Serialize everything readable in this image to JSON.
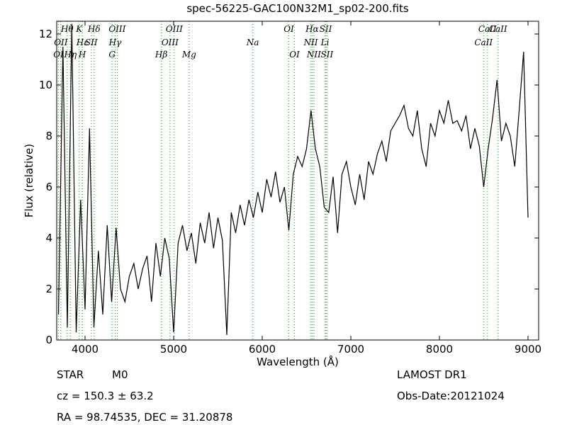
{
  "chart_data": {
    "type": "line",
    "title": "spec-56225-GAC100N32M1_sp02-200.fits",
    "x_label": "Wavelength (Å)",
    "y_label": "Flux (relative)",
    "xlim": [
      3680,
      9120
    ],
    "ylim": [
      0,
      12.5
    ],
    "xticks": [
      4000,
      5000,
      6000,
      7000,
      8000,
      9000
    ],
    "yticks": [
      0,
      2,
      4,
      6,
      8,
      10,
      12
    ],
    "series": [
      {
        "color": "#000000",
        "x": [
          3700,
          3750,
          3800,
          3850,
          3900,
          3950,
          4000,
          4050,
          4100,
          4150,
          4200,
          4250,
          4300,
          4350,
          4400,
          4450,
          4500,
          4550,
          4600,
          4650,
          4700,
          4750,
          4800,
          4850,
          4900,
          4950,
          5000,
          5050,
          5100,
          5150,
          5200,
          5250,
          5300,
          5350,
          5400,
          5450,
          5500,
          5550,
          5600,
          5650,
          5700,
          5750,
          5800,
          5850,
          5900,
          5950,
          6000,
          6050,
          6100,
          6150,
          6200,
          6250,
          6300,
          6350,
          6400,
          6450,
          6500,
          6550,
          6600,
          6650,
          6700,
          6750,
          6800,
          6850,
          6900,
          6950,
          7000,
          7050,
          7100,
          7150,
          7200,
          7250,
          7300,
          7350,
          7400,
          7450,
          7500,
          7550,
          7600,
          7650,
          7700,
          7750,
          7800,
          7850,
          7900,
          7950,
          8000,
          8050,
          8100,
          8150,
          8200,
          8250,
          8300,
          8350,
          8400,
          8450,
          8500,
          8550,
          8600,
          8650,
          8700,
          8750,
          8800,
          8850,
          8900,
          8950,
          9000
        ],
        "values": [
          1.0,
          11.5,
          0.5,
          12.4,
          0.3,
          5.5,
          1.2,
          8.3,
          0.5,
          3.5,
          1.0,
          4.5,
          1.5,
          4.4,
          2.0,
          1.5,
          2.5,
          3.0,
          2.0,
          2.8,
          3.3,
          1.5,
          3.8,
          2.5,
          4.0,
          3.2,
          0.3,
          3.8,
          4.5,
          3.5,
          4.2,
          3.0,
          4.6,
          3.8,
          5.0,
          3.6,
          4.8,
          3.9,
          0.2,
          5.0,
          4.2,
          5.3,
          4.5,
          5.5,
          4.8,
          5.8,
          5.0,
          6.3,
          5.6,
          6.6,
          5.4,
          6.0,
          4.3,
          6.5,
          7.2,
          6.8,
          7.5,
          9.0,
          7.5,
          6.8,
          5.2,
          5.0,
          6.4,
          4.2,
          6.5,
          7.0,
          6.0,
          5.3,
          6.5,
          5.5,
          7.0,
          6.5,
          7.3,
          7.8,
          7.0,
          8.2,
          8.5,
          8.8,
          9.2,
          8.3,
          8.0,
          9.0,
          7.5,
          6.8,
          8.5,
          8.0,
          9.0,
          8.5,
          9.4,
          8.5,
          8.6,
          8.2,
          8.8,
          7.5,
          8.3,
          7.6,
          6.0,
          7.5,
          8.7,
          10.2,
          7.8,
          8.5,
          8.0,
          6.8,
          9.0,
          11.3,
          4.8
        ]
      }
    ],
    "annotation_color": "#33aa33",
    "annotations": [
      {
        "label": "Hθ",
        "x": 3798
      },
      {
        "label": "OII",
        "x": 3727
      },
      {
        "label": "OI",
        "x": 3700
      },
      {
        "label": "K",
        "x": 3934
      },
      {
        "label": "Hε",
        "x": 3970
      },
      {
        "label": "Hη",
        "x": 3835
      },
      {
        "label": "Hδ",
        "x": 4102
      },
      {
        "label": "SII",
        "x": 4070
      },
      {
        "label": "H",
        "x": 3969
      },
      {
        "label": "OIII",
        "x": 4363
      },
      {
        "label": "Hγ",
        "x": 4340
      },
      {
        "label": "G",
        "x": 4305
      },
      {
        "label": "OIII",
        "x": 5007
      },
      {
        "label": "OIII",
        "x": 4959
      },
      {
        "label": "Hβ",
        "x": 4861
      },
      {
        "label": "OI",
        "x": 6300
      },
      {
        "label": "Na",
        "x": 5893
      },
      {
        "label": "Mg",
        "x": 5175
      },
      {
        "label": "Hα",
        "x": 6563
      },
      {
        "label": "NII",
        "x": 6548
      },
      {
        "label": "OI",
        "x": 6364
      },
      {
        "label": "SII",
        "x": 6716
      },
      {
        "label": "Li",
        "x": 6708
      },
      {
        "label": "NII",
        "x": 6583
      },
      {
        "label": "CaII",
        "x": 8542
      },
      {
        "label": "CaII",
        "x": 8498
      },
      {
        "label": "SII",
        "x": 6731
      },
      {
        "label": "CaII",
        "x": 8662
      }
    ],
    "object_class": "STAR",
    "subclass": "M0",
    "redshift_text": "cz = 150.3 ± 63.2",
    "coords_text": "RA = 98.74535, DEC = 31.20878",
    "survey": "LAMOST DR1",
    "obs_date": "Obs-Date:20121024"
  }
}
